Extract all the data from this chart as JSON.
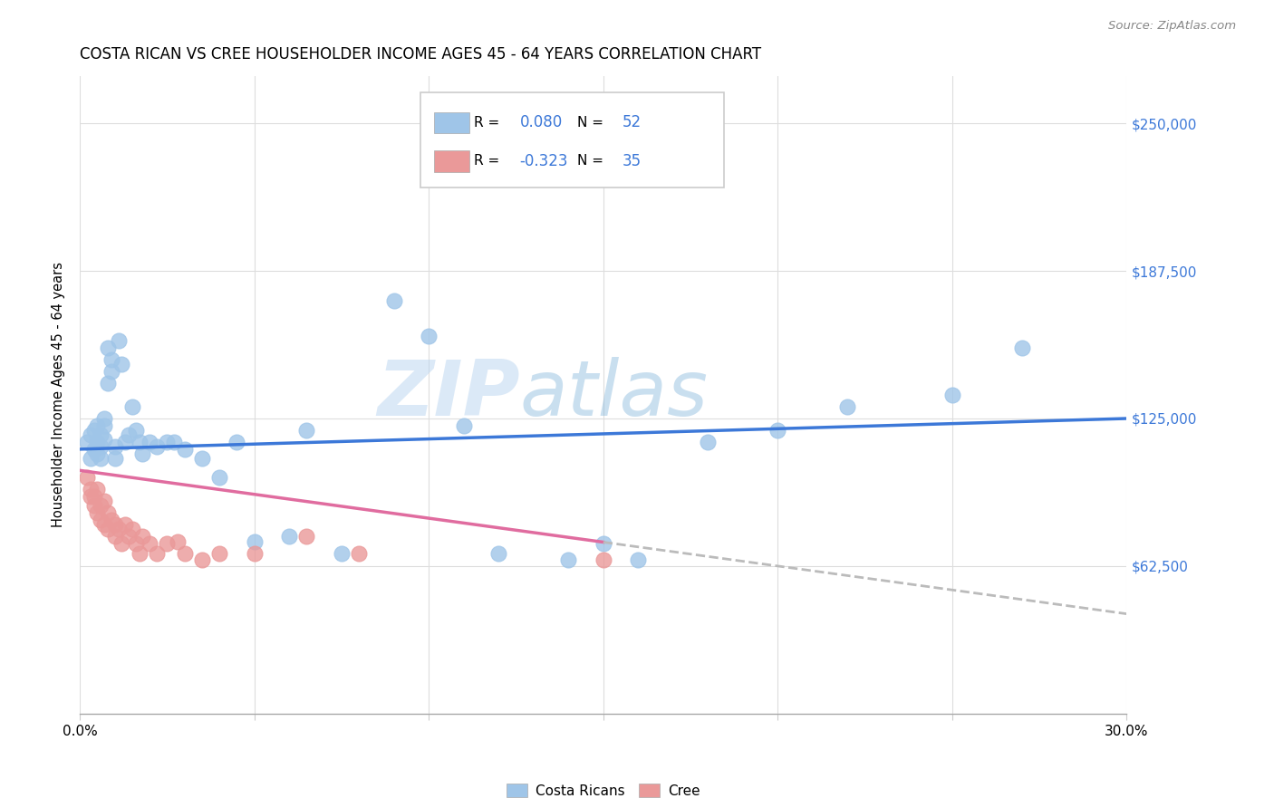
{
  "title": "COSTA RICAN VS CREE HOUSEHOLDER INCOME AGES 45 - 64 YEARS CORRELATION CHART",
  "source": "Source: ZipAtlas.com",
  "ylabel": "Householder Income Ages 45 - 64 years",
  "xlim": [
    0.0,
    0.3
  ],
  "ylim": [
    0,
    270000
  ],
  "yticks": [
    0,
    62500,
    125000,
    187500,
    250000
  ],
  "ytick_labels": [
    "",
    "$62,500",
    "$125,000",
    "$187,500",
    "$250,000"
  ],
  "xticks": [
    0.0,
    0.05,
    0.1,
    0.15,
    0.2,
    0.25,
    0.3
  ],
  "xtick_labels": [
    "0.0%",
    "",
    "",
    "",
    "",
    "",
    "30.0%"
  ],
  "background_color": "#ffffff",
  "grid_color": "#dddddd",
  "watermark_zip": "ZIP",
  "watermark_atlas": "atlas",
  "legend_labels": [
    "Costa Ricans",
    "Cree"
  ],
  "blue_color": "#9fc5e8",
  "pink_color": "#ea9999",
  "blue_line_color": "#3c78d8",
  "pink_line_color": "#e06c9f",
  "pink_dashed_color": "#bbbbbb",
  "right_label_color": "#3c78d8",
  "R_blue": 0.08,
  "N_blue": 52,
  "R_pink": -0.323,
  "N_pink": 35,
  "blue_intercept": 112000,
  "blue_slope": 43000,
  "pink_intercept": 103000,
  "pink_slope": -200000,
  "costa_rican_x": [
    0.002,
    0.003,
    0.003,
    0.004,
    0.004,
    0.005,
    0.005,
    0.005,
    0.006,
    0.006,
    0.006,
    0.007,
    0.007,
    0.007,
    0.008,
    0.008,
    0.009,
    0.009,
    0.01,
    0.01,
    0.011,
    0.012,
    0.013,
    0.014,
    0.015,
    0.016,
    0.017,
    0.018,
    0.02,
    0.022,
    0.025,
    0.027,
    0.03,
    0.035,
    0.04,
    0.045,
    0.05,
    0.06,
    0.065,
    0.075,
    0.09,
    0.1,
    0.11,
    0.12,
    0.14,
    0.15,
    0.16,
    0.18,
    0.2,
    0.22,
    0.25,
    0.27
  ],
  "costa_rican_y": [
    115000,
    108000,
    118000,
    112000,
    120000,
    115000,
    110000,
    122000,
    113000,
    118000,
    108000,
    125000,
    116000,
    122000,
    140000,
    155000,
    145000,
    150000,
    113000,
    108000,
    158000,
    148000,
    115000,
    118000,
    130000,
    120000,
    115000,
    110000,
    115000,
    113000,
    115000,
    115000,
    112000,
    108000,
    100000,
    115000,
    73000,
    75000,
    120000,
    68000,
    175000,
    160000,
    122000,
    68000,
    65000,
    72000,
    65000,
    115000,
    120000,
    130000,
    135000,
    155000
  ],
  "cree_x": [
    0.002,
    0.003,
    0.003,
    0.004,
    0.004,
    0.005,
    0.005,
    0.006,
    0.006,
    0.007,
    0.007,
    0.008,
    0.008,
    0.009,
    0.01,
    0.01,
    0.011,
    0.012,
    0.013,
    0.014,
    0.015,
    0.016,
    0.017,
    0.018,
    0.02,
    0.022,
    0.025,
    0.028,
    0.03,
    0.035,
    0.04,
    0.05,
    0.065,
    0.08,
    0.15
  ],
  "cree_y": [
    100000,
    95000,
    92000,
    88000,
    92000,
    85000,
    95000,
    88000,
    82000,
    90000,
    80000,
    85000,
    78000,
    82000,
    80000,
    75000,
    78000,
    72000,
    80000,
    75000,
    78000,
    72000,
    68000,
    75000,
    72000,
    68000,
    72000,
    73000,
    68000,
    65000,
    68000,
    68000,
    75000,
    68000,
    65000
  ]
}
